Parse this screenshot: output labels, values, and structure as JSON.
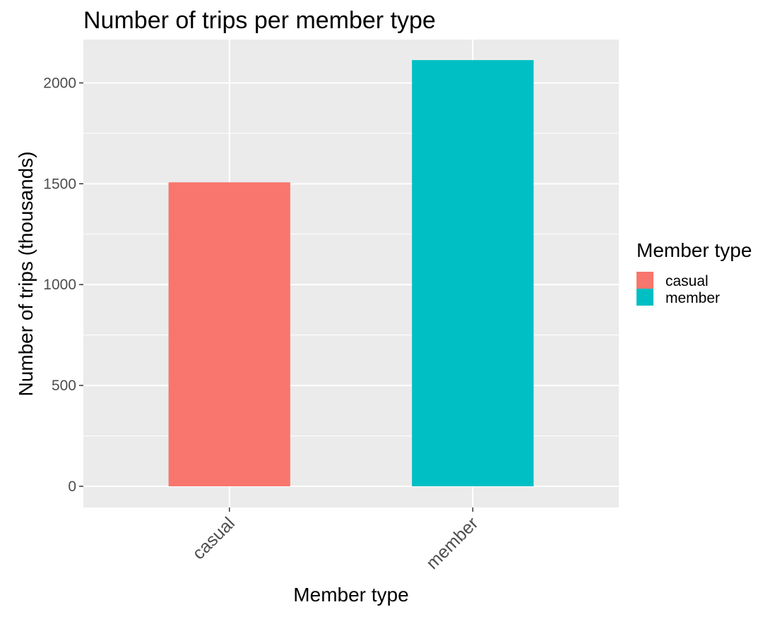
{
  "chart_data": {
    "type": "bar",
    "title": "Number of trips per member type",
    "xlabel": "Member type",
    "ylabel": "Number of trips (thousands)",
    "categories": [
      "casual",
      "member"
    ],
    "values": [
      1507,
      2113
    ],
    "colors": [
      "#F8766D",
      "#00BFC4"
    ],
    "ylim": [
      -105,
      2215
    ],
    "yticks": [
      0,
      500,
      1000,
      1500,
      2000
    ],
    "ytick_labels": [
      "0",
      "500",
      "1000",
      "1500",
      "2000"
    ],
    "grid": true,
    "legend": {
      "title": "Member type",
      "position": "right",
      "entries": [
        {
          "label": "casual",
          "color": "#F8766D"
        },
        {
          "label": "member",
          "color": "#00BFC4"
        }
      ]
    },
    "panel_background": "#EBEBEB",
    "grid_color": "#FFFFFF"
  }
}
